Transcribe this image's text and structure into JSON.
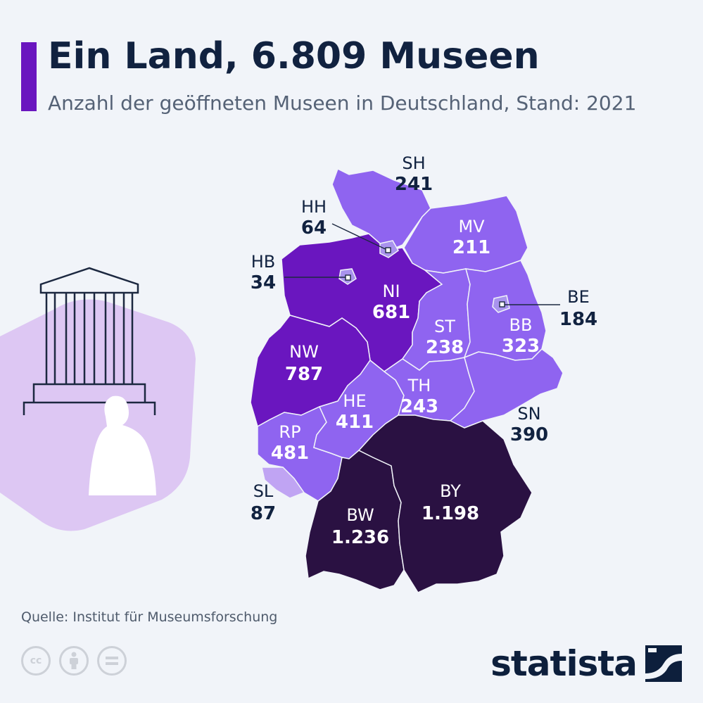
{
  "header": {
    "title": "Ein Land, 6.809 Museen",
    "subtitle": "Anzahl der geöffneten Museen in Deutschland, Stand: 2021"
  },
  "footer": {
    "source": "Quelle: Institut für Museumsforschung",
    "brand": "statista",
    "license_icons": [
      "cc-icon",
      "attribution-icon",
      "no-derivatives-icon"
    ]
  },
  "colors": {
    "accent": "#6a16bf",
    "dark": "#112240",
    "scale": [
      "#b99cf0",
      "#8f64f0",
      "#6a16bf",
      "#2a1142"
    ]
  },
  "map_data": {
    "states": [
      {
        "code": "SH",
        "value": "241"
      },
      {
        "code": "HH",
        "value": "64"
      },
      {
        "code": "MV",
        "value": "211"
      },
      {
        "code": "HB",
        "value": "34"
      },
      {
        "code": "NI",
        "value": "681"
      },
      {
        "code": "BE",
        "value": "184"
      },
      {
        "code": "ST",
        "value": "238"
      },
      {
        "code": "BB",
        "value": "323"
      },
      {
        "code": "NW",
        "value": "787"
      },
      {
        "code": "TH",
        "value": "243"
      },
      {
        "code": "HE",
        "value": "411"
      },
      {
        "code": "SN",
        "value": "390"
      },
      {
        "code": "RP",
        "value": "481"
      },
      {
        "code": "SL",
        "value": "87"
      },
      {
        "code": "BY",
        "value": "1.198"
      },
      {
        "code": "BW",
        "value": "1.236"
      }
    ]
  }
}
